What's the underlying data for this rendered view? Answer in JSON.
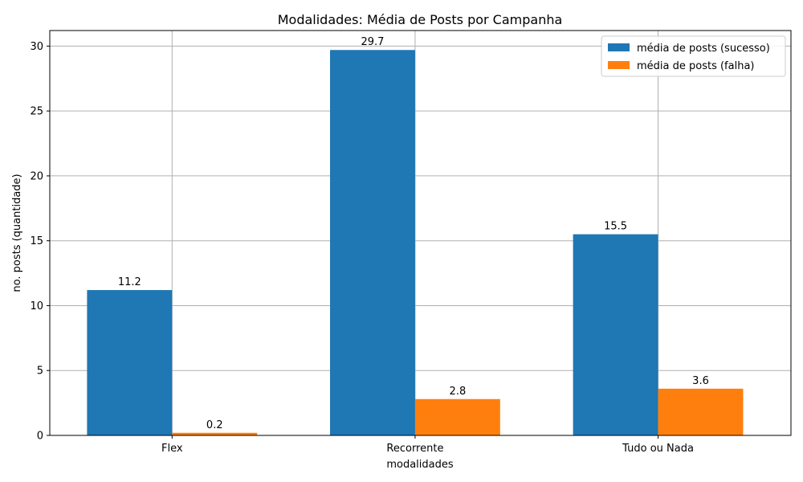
{
  "chart_data": {
    "type": "bar",
    "title": "Modalidades: Média de Posts por Campanha",
    "xlabel": "modalidades",
    "ylabel": "no. posts (quantidade)",
    "categories": [
      "Flex",
      "Recorrente",
      "Tudo ou Nada"
    ],
    "series": [
      {
        "name": "média de posts (sucesso)",
        "values": [
          11.2,
          29.7,
          15.5
        ],
        "labels": [
          "11.2",
          "29.7",
          "15.5"
        ],
        "color": "#1f77b4"
      },
      {
        "name": "média de posts (falha)",
        "values": [
          0.2,
          2.8,
          3.6
        ],
        "labels": [
          "0.2",
          "2.8",
          "3.6"
        ],
        "color": "#ff7f0e"
      }
    ],
    "ylim": [
      0,
      31.2
    ],
    "yticks": [
      0,
      5,
      10,
      15,
      20,
      25,
      30
    ],
    "ytick_labels": [
      "0",
      "5",
      "10",
      "15",
      "20",
      "25",
      "30"
    ],
    "grid": true,
    "legend_position": "top-right"
  }
}
